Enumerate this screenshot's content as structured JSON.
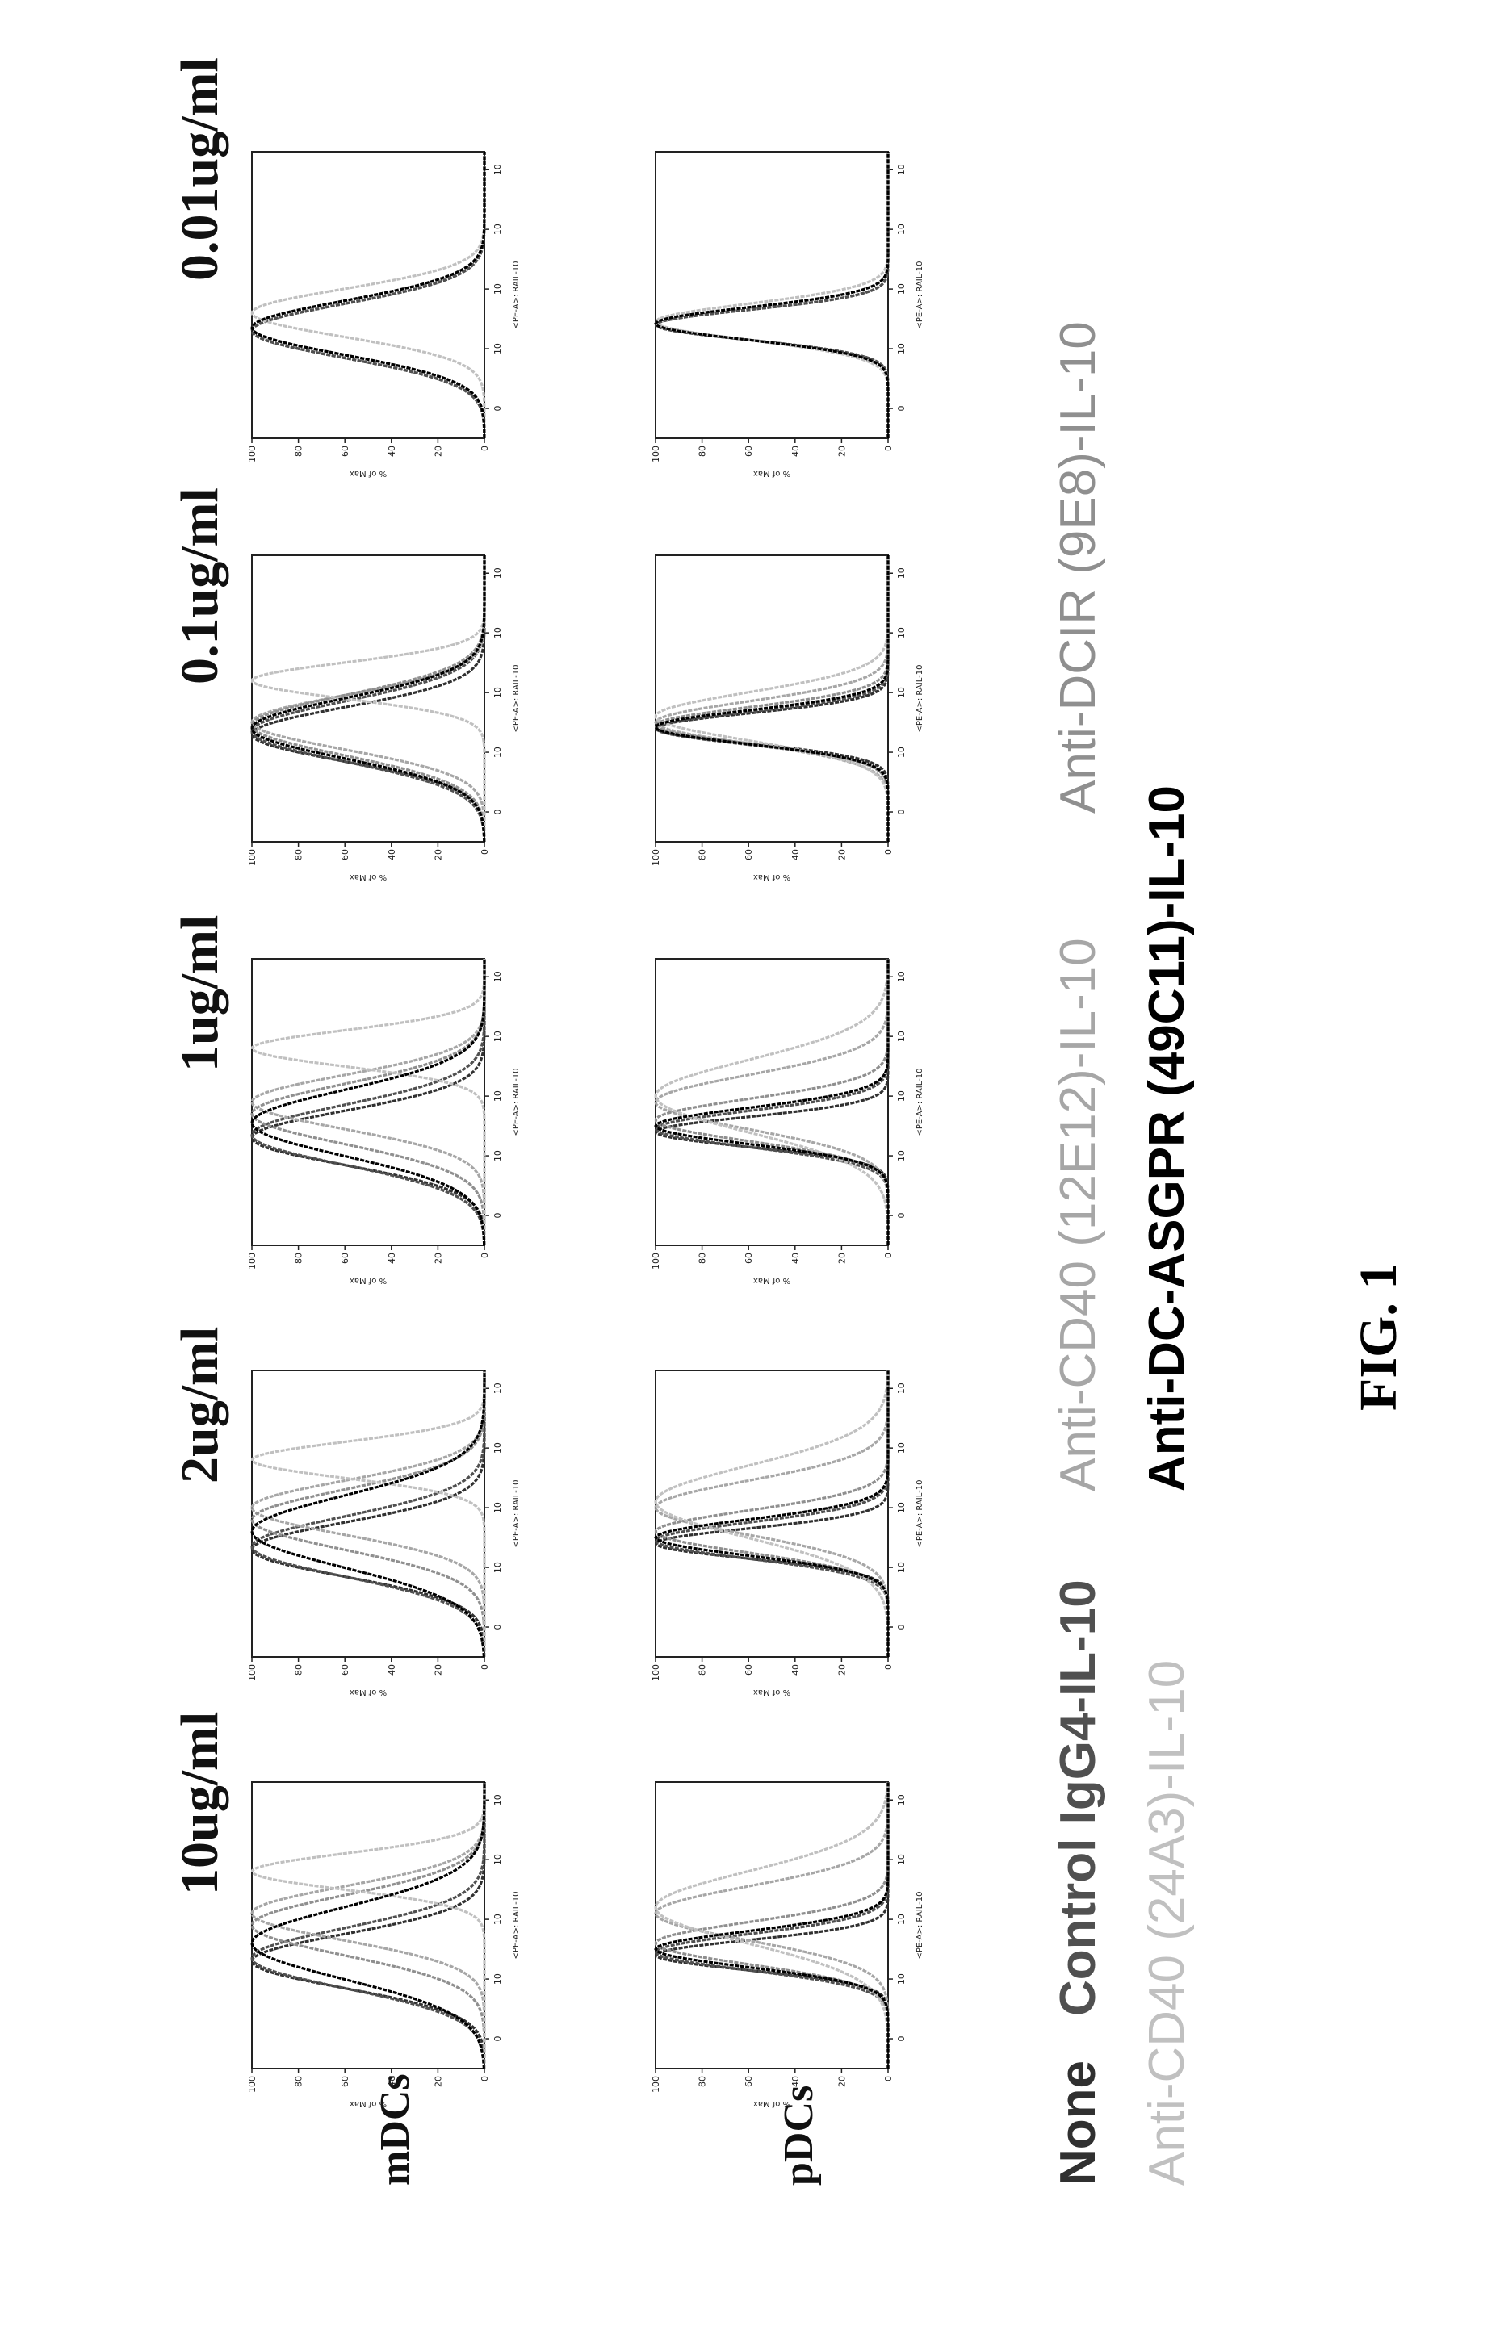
{
  "figure_label": "FIG. 1",
  "row_labels": [
    "mDCs",
    "pDCs"
  ],
  "concentrations": [
    "10ug/ml",
    "2ug/ml",
    "1ug/ml",
    "0.1ug/ml",
    "0.01ug/ml"
  ],
  "axis": {
    "xlabel": "<PE-A>: RAIL-10",
    "ylabel": "% of Max",
    "yticks": [
      "0",
      "20",
      "40",
      "60",
      "80",
      "100"
    ],
    "xticks": [
      "0",
      "10",
      "10",
      "10",
      "10"
    ]
  },
  "legend": {
    "line1": [
      "None",
      "Control IgG4-IL-10",
      "Anti-CD40 (12E12)-IL-10",
      "Anti-DCIR (9E8)-IL-10"
    ],
    "line2": [
      "Anti-CD40 (24A3)-IL-10",
      "Anti-DC-ASGPR (49C11)-IL-10"
    ]
  },
  "colors": {
    "None": "#303030",
    "Control IgG4-IL-10": "#505050",
    "Anti-CD40 (12E12)-IL-10": "#a6a6a6",
    "Anti-DCIR (9E8)-IL-10": "#8f8f8f",
    "Anti-CD40 (24A3)-IL-10": "#c0c0c0",
    "Anti-DC-ASGPR (49C11)-IL-10": "#000000"
  },
  "chart_data": {
    "type": "line",
    "x_scale": "log (fluorescence intensity, <PE-A>: RAIL-10)",
    "ylim": [
      0,
      100
    ],
    "note_values": "histogram peak positions in decades of fluorescence (0 = first decade mark) and peak % of Max",
    "panels": [
      {
        "row": "mDCs",
        "concentration": "10ug/ml",
        "series": [
          {
            "name": "None",
            "peak_log": 1.3,
            "width": 0.45
          },
          {
            "name": "Control IgG4-IL-10",
            "peak_log": 1.35,
            "width": 0.5
          },
          {
            "name": "Anti-CD40 (12E12)-IL-10",
            "peak_log": 2.1,
            "width": 0.45
          },
          {
            "name": "Anti-DCIR (9E8)-IL-10",
            "peak_log": 1.9,
            "width": 0.5
          },
          {
            "name": "Anti-CD40 (24A3)-IL-10",
            "peak_log": 2.8,
            "width": 0.3
          },
          {
            "name": "Anti-DC-ASGPR (49C11)-IL-10",
            "peak_log": 1.6,
            "width": 0.6
          }
        ]
      },
      {
        "row": "mDCs",
        "concentration": "2ug/ml",
        "series": [
          {
            "name": "None",
            "peak_log": 1.3,
            "width": 0.45
          },
          {
            "name": "Control IgG4-IL-10",
            "peak_log": 1.35,
            "width": 0.5
          },
          {
            "name": "Anti-CD40 (12E12)-IL-10",
            "peak_log": 2.0,
            "width": 0.45
          },
          {
            "name": "Anti-DCIR (9E8)-IL-10",
            "peak_log": 1.8,
            "width": 0.5
          },
          {
            "name": "Anti-CD40 (24A3)-IL-10",
            "peak_log": 2.8,
            "width": 0.3
          },
          {
            "name": "Anti-DC-ASGPR (49C11)-IL-10",
            "peak_log": 1.6,
            "width": 0.6
          }
        ]
      },
      {
        "row": "mDCs",
        "concentration": "1ug/ml",
        "series": [
          {
            "name": "None",
            "peak_log": 1.3,
            "width": 0.45
          },
          {
            "name": "Control IgG4-IL-10",
            "peak_log": 1.35,
            "width": 0.5
          },
          {
            "name": "Anti-CD40 (12E12)-IL-10",
            "peak_log": 1.9,
            "width": 0.45
          },
          {
            "name": "Anti-DCIR (9E8)-IL-10",
            "peak_log": 1.7,
            "width": 0.5
          },
          {
            "name": "Anti-CD40 (24A3)-IL-10",
            "peak_log": 2.8,
            "width": 0.3
          },
          {
            "name": "Anti-DC-ASGPR (49C11)-IL-10",
            "peak_log": 1.55,
            "width": 0.55
          }
        ]
      },
      {
        "row": "mDCs",
        "concentration": "0.1ug/ml",
        "series": [
          {
            "name": "None",
            "peak_log": 1.3,
            "width": 0.45
          },
          {
            "name": "Control IgG4-IL-10",
            "peak_log": 1.35,
            "width": 0.5
          },
          {
            "name": "Anti-CD40 (12E12)-IL-10",
            "peak_log": 1.5,
            "width": 0.45
          },
          {
            "name": "Anti-DCIR (9E8)-IL-10",
            "peak_log": 1.45,
            "width": 0.5
          },
          {
            "name": "Anti-CD40 (24A3)-IL-10",
            "peak_log": 2.2,
            "width": 0.3
          },
          {
            "name": "Anti-DC-ASGPR (49C11)-IL-10",
            "peak_log": 1.4,
            "width": 0.5
          }
        ]
      },
      {
        "row": "mDCs",
        "concentration": "0.01ug/ml",
        "series": [
          {
            "name": "None",
            "peak_log": 1.3,
            "width": 0.45
          },
          {
            "name": "Control IgG4-IL-10",
            "peak_log": 1.3,
            "width": 0.45
          },
          {
            "name": "Anti-CD40 (12E12)-IL-10",
            "peak_log": 1.35,
            "width": 0.45
          },
          {
            "name": "Anti-DCIR (9E8)-IL-10",
            "peak_log": 1.35,
            "width": 0.45
          },
          {
            "name": "Anti-CD40 (24A3)-IL-10",
            "peak_log": 1.6,
            "width": 0.4
          },
          {
            "name": "Anti-DC-ASGPR (49C11)-IL-10",
            "peak_log": 1.35,
            "width": 0.45
          }
        ]
      },
      {
        "row": "pDCs",
        "concentration": "10ug/ml",
        "series": [
          {
            "name": "None",
            "peak_log": 1.4,
            "width": 0.25
          },
          {
            "name": "Control IgG4-IL-10",
            "peak_log": 1.45,
            "width": 0.3
          },
          {
            "name": "Anti-CD40 (12E12)-IL-10",
            "peak_log": 2.1,
            "width": 0.45
          },
          {
            "name": "Anti-DCIR (9E8)-IL-10",
            "peak_log": 1.6,
            "width": 0.35
          },
          {
            "name": "Anti-CD40 (24A3)-IL-10",
            "peak_log": 2.2,
            "width": 0.6
          },
          {
            "name": "Anti-DC-ASGPR (49C11)-IL-10",
            "peak_log": 1.5,
            "width": 0.3
          }
        ]
      },
      {
        "row": "pDCs",
        "concentration": "2ug/ml",
        "series": [
          {
            "name": "None",
            "peak_log": 1.4,
            "width": 0.25
          },
          {
            "name": "Control IgG4-IL-10",
            "peak_log": 1.45,
            "width": 0.3
          },
          {
            "name": "Anti-CD40 (12E12)-IL-10",
            "peak_log": 2.0,
            "width": 0.45
          },
          {
            "name": "Anti-DCIR (9E8)-IL-10",
            "peak_log": 1.6,
            "width": 0.35
          },
          {
            "name": "Anti-CD40 (24A3)-IL-10",
            "peak_log": 2.1,
            "width": 0.6
          },
          {
            "name": "Anti-DC-ASGPR (49C11)-IL-10",
            "peak_log": 1.5,
            "width": 0.3
          }
        ]
      },
      {
        "row": "pDCs",
        "concentration": "1ug/ml",
        "series": [
          {
            "name": "None",
            "peak_log": 1.4,
            "width": 0.25
          },
          {
            "name": "Control IgG4-IL-10",
            "peak_log": 1.45,
            "width": 0.3
          },
          {
            "name": "Anti-CD40 (12E12)-IL-10",
            "peak_log": 1.9,
            "width": 0.45
          },
          {
            "name": "Anti-DCIR (9E8)-IL-10",
            "peak_log": 1.6,
            "width": 0.35
          },
          {
            "name": "Anti-CD40 (24A3)-IL-10",
            "peak_log": 2.0,
            "width": 0.6
          },
          {
            "name": "Anti-DC-ASGPR (49C11)-IL-10",
            "peak_log": 1.5,
            "width": 0.3
          }
        ]
      },
      {
        "row": "pDCs",
        "concentration": "0.1ug/ml",
        "series": [
          {
            "name": "None",
            "peak_log": 1.4,
            "width": 0.25
          },
          {
            "name": "Control IgG4-IL-10",
            "peak_log": 1.4,
            "width": 0.27
          },
          {
            "name": "Anti-CD40 (12E12)-IL-10",
            "peak_log": 1.5,
            "width": 0.35
          },
          {
            "name": "Anti-DCIR (9E8)-IL-10",
            "peak_log": 1.45,
            "width": 0.3
          },
          {
            "name": "Anti-CD40 (24A3)-IL-10",
            "peak_log": 1.6,
            "width": 0.4
          },
          {
            "name": "Anti-DC-ASGPR (49C11)-IL-10",
            "peak_log": 1.42,
            "width": 0.28
          }
        ]
      },
      {
        "row": "pDCs",
        "concentration": "0.01ug/ml",
        "series": [
          {
            "name": "None",
            "peak_log": 1.4,
            "width": 0.25
          },
          {
            "name": "Control IgG4-IL-10",
            "peak_log": 1.4,
            "width": 0.25
          },
          {
            "name": "Anti-CD40 (12E12)-IL-10",
            "peak_log": 1.42,
            "width": 0.27
          },
          {
            "name": "Anti-DCIR (9E8)-IL-10",
            "peak_log": 1.42,
            "width": 0.27
          },
          {
            "name": "Anti-CD40 (24A3)-IL-10",
            "peak_log": 1.45,
            "width": 0.3
          },
          {
            "name": "Anti-DC-ASGPR (49C11)-IL-10",
            "peak_log": 1.42,
            "width": 0.27
          }
        ]
      }
    ]
  }
}
